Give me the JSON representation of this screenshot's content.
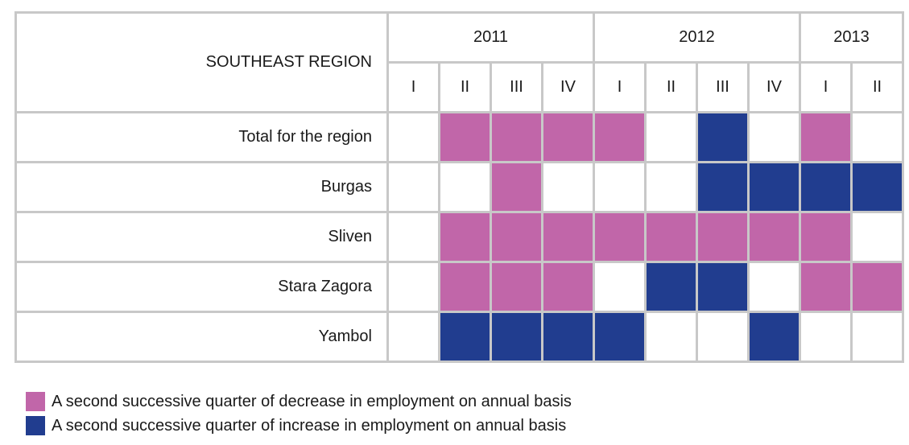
{
  "chart_data": {
    "type": "table",
    "title": "SOUTHEAST REGION",
    "years": [
      {
        "label": "2011",
        "span": 4
      },
      {
        "label": "2012",
        "span": 4
      },
      {
        "label": "2013",
        "span": 2
      }
    ],
    "quarters": [
      "I",
      "II",
      "III",
      "IV",
      "I",
      "II",
      "III",
      "IV",
      "I",
      "II"
    ],
    "rows": [
      {
        "label": "Total for the region",
        "values": [
          "",
          "dec",
          "dec",
          "dec",
          "dec",
          "",
          "inc",
          "",
          "dec",
          ""
        ]
      },
      {
        "label": "Burgas",
        "values": [
          "",
          "",
          "dec",
          "",
          "",
          "",
          "inc",
          "inc",
          "inc",
          "inc"
        ]
      },
      {
        "label": "Sliven",
        "values": [
          "",
          "dec",
          "dec",
          "dec",
          "dec",
          "dec",
          "dec",
          "dec",
          "dec",
          ""
        ]
      },
      {
        "label": "Stara Zagora",
        "values": [
          "",
          "dec",
          "dec",
          "dec",
          "",
          "inc",
          "inc",
          "",
          "dec",
          "dec"
        ]
      },
      {
        "label": "Yambol",
        "values": [
          "",
          "inc",
          "inc",
          "inc",
          "inc",
          "",
          "",
          "inc",
          "",
          ""
        ]
      }
    ],
    "legend": [
      {
        "key": "dec",
        "label": "A second successive quarter of decrease in employment on annual basis",
        "color": "#c166a9"
      },
      {
        "key": "inc",
        "label": "A second successive quarter of increase in employment on annual basis",
        "color": "#213d8f"
      }
    ]
  }
}
